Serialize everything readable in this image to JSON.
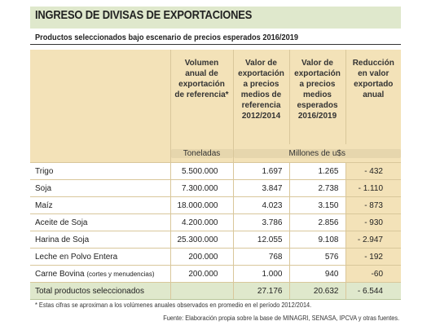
{
  "title": "INGRESO DE DIVISAS DE EXPORTACIONES",
  "subtitle": "Productos seleccionados bajo escenario de precios esperados 2016/2019",
  "headers": {
    "col1": [
      "Volumen",
      "anual de",
      "exportación",
      "de referencia*"
    ],
    "col2": [
      "Valor de",
      "exportación",
      "a precios",
      "medios de",
      "referencia",
      "2012/2014"
    ],
    "col3": [
      "Valor de",
      "exportación",
      "a precios",
      "medios",
      "esperados",
      "2016/2019"
    ],
    "col4": [
      "Reducción",
      "en valor",
      "exportado",
      "anual"
    ]
  },
  "units": {
    "col1": "Toneladas",
    "col234": "Millones de u$s"
  },
  "rows": [
    {
      "name": "Trigo",
      "name_note": "",
      "vol": "5.500.000",
      "ref": "1.697",
      "exp": "1.265",
      "red": "- 432"
    },
    {
      "name": "Soja",
      "name_note": "",
      "vol": "7.300.000",
      "ref": "3.847",
      "exp": "2.738",
      "red": "- 1.110"
    },
    {
      "name": "Maíz",
      "name_note": "",
      "vol": "18.000.000",
      "ref": "4.023",
      "exp": "3.150",
      "red": "- 873"
    },
    {
      "name": "Aceite de Soja",
      "name_note": "",
      "vol": "4.200.000",
      "ref": "3.786",
      "exp": "2.856",
      "red": "- 930"
    },
    {
      "name": "Harina de Soja",
      "name_note": "",
      "vol": "25.300.000",
      "ref": "12.055",
      "exp": "9.108",
      "red": "- 2.947"
    },
    {
      "name": "Leche en Polvo Entera",
      "name_note": "",
      "vol": "200.000",
      "ref": "768",
      "exp": "576",
      "red": "- 192"
    },
    {
      "name": "Carne Bovina",
      "name_note": "(cortes y menudencias)",
      "vol": "200.000",
      "ref": "1.000",
      "exp": "940",
      "red": "-60"
    }
  ],
  "total": {
    "name": "Total productos seleccionados",
    "ref": "27.176",
    "exp": "20.632",
    "red": "- 6.544"
  },
  "footnote": "* Estas cifras se aproximan a los volúmenes anuales observados en promedio en el período 2012/2014.",
  "source": "Fuente: Elaboración propia sobre la base de MINAGRI, SENASA, IPCVA y otras fuentes."
}
